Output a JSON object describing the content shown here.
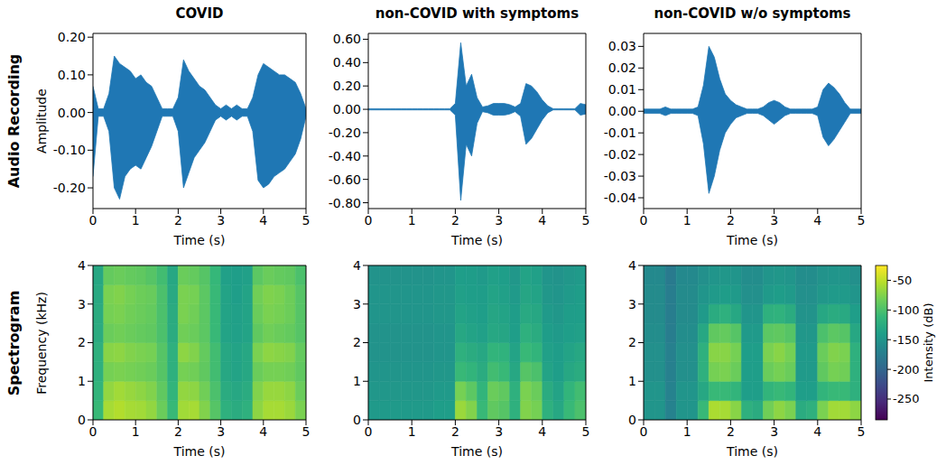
{
  "column_titles": [
    "COVID",
    "non-COVID with symptoms",
    "non-COVID w/o symptoms"
  ],
  "row_labels": [
    "Audio Recording",
    "Spectrogram"
  ],
  "colorbar": {
    "label": "Intensity (dB)",
    "range": [
      -285,
      -25
    ],
    "ticks": [
      -50,
      -100,
      -150,
      -200,
      -250
    ]
  },
  "chart_data": [
    {
      "type": "area",
      "color": "#1f77b4",
      "xlabel": "Time (s)",
      "ylabel": "Amplitude",
      "xlim": [
        0,
        5
      ],
      "xticks": [
        0,
        1,
        2,
        3,
        4,
        5
      ],
      "ylim": [
        -0.255,
        0.21
      ],
      "yticks": [
        {
          "value": -0.2,
          "label": "-0.20"
        },
        {
          "value": -0.1,
          "label": "-0.10"
        },
        {
          "value": 0,
          "label": "0.00"
        },
        {
          "value": 0.1,
          "label": "0.10"
        },
        {
          "value": 0.2,
          "label": "0.20"
        }
      ],
      "x": [
        0,
        0.125,
        0.25,
        0.375,
        0.5,
        0.625,
        0.75,
        0.875,
        1,
        1.125,
        1.25,
        1.375,
        1.5,
        1.625,
        1.75,
        1.875,
        2,
        2.125,
        2.25,
        2.375,
        2.5,
        2.625,
        2.75,
        2.875,
        3,
        3.125,
        3.25,
        3.375,
        3.5,
        3.625,
        3.75,
        3.875,
        4,
        4.125,
        4.25,
        4.375,
        4.5,
        4.625,
        4.75,
        4.875,
        5
      ],
      "upper": [
        0.07,
        0.01,
        0.01,
        0.05,
        0.15,
        0.13,
        0.12,
        0.11,
        0.09,
        0.1,
        0.08,
        0.07,
        0.04,
        0.01,
        0.01,
        0.01,
        0.04,
        0.14,
        0.11,
        0.09,
        0.07,
        0.06,
        0.04,
        0.02,
        0.01,
        0.02,
        0.01,
        0.02,
        0.01,
        0.01,
        0.04,
        0.1,
        0.13,
        0.12,
        0.11,
        0.1,
        0.1,
        0.09,
        0.08,
        0.05,
        0.01
      ],
      "lower": [
        -0.17,
        -0.01,
        -0.01,
        -0.05,
        -0.2,
        -0.23,
        -0.17,
        -0.15,
        -0.14,
        -0.15,
        -0.12,
        -0.09,
        -0.05,
        -0.01,
        -0.01,
        -0.01,
        -0.05,
        -0.2,
        -0.16,
        -0.12,
        -0.1,
        -0.08,
        -0.05,
        -0.02,
        -0.01,
        -0.02,
        -0.01,
        -0.02,
        -0.01,
        -0.01,
        -0.05,
        -0.18,
        -0.2,
        -0.19,
        -0.17,
        -0.16,
        -0.15,
        -0.13,
        -0.11,
        -0.07,
        -0.01
      ]
    },
    {
      "type": "area",
      "color": "#1f77b4",
      "xlabel": "Time (s)",
      "xlim": [
        0,
        5
      ],
      "xticks": [
        0,
        1,
        2,
        3,
        4,
        5
      ],
      "ylim": [
        -0.85,
        0.65
      ],
      "yticks": [
        {
          "value": -0.8,
          "label": "-0.80"
        },
        {
          "value": -0.6,
          "label": "-0.60"
        },
        {
          "value": -0.4,
          "label": "-0.40"
        },
        {
          "value": -0.2,
          "label": "-0.20"
        },
        {
          "value": 0,
          "label": "0.00"
        },
        {
          "value": 0.2,
          "label": "0.20"
        },
        {
          "value": 0.4,
          "label": "0.40"
        },
        {
          "value": 0.6,
          "label": "0.60"
        }
      ],
      "x": [
        0,
        0.125,
        0.25,
        0.375,
        0.5,
        0.625,
        0.75,
        0.875,
        1,
        1.125,
        1.25,
        1.375,
        1.5,
        1.625,
        1.75,
        1.875,
        2,
        2.125,
        2.25,
        2.375,
        2.5,
        2.625,
        2.75,
        2.875,
        3,
        3.125,
        3.25,
        3.375,
        3.5,
        3.625,
        3.75,
        3.875,
        4,
        4.125,
        4.25,
        4.375,
        4.5,
        4.625,
        4.75,
        4.875,
        5
      ],
      "upper": [
        0.005,
        0.005,
        0.005,
        0.005,
        0.005,
        0.005,
        0.005,
        0.005,
        0.005,
        0.005,
        0.005,
        0.005,
        0.005,
        0.005,
        0.005,
        0.005,
        0.05,
        0.57,
        0.2,
        0.3,
        0.1,
        0.02,
        0.03,
        0.05,
        0.05,
        0.05,
        0.04,
        0.02,
        0.05,
        0.22,
        0.2,
        0.15,
        0.08,
        0.03,
        0.005,
        0.005,
        0.005,
        0.005,
        0.005,
        0.05,
        0.04
      ],
      "lower": [
        -0.005,
        -0.005,
        -0.005,
        -0.005,
        -0.005,
        -0.005,
        -0.005,
        -0.005,
        -0.005,
        -0.005,
        -0.005,
        -0.005,
        -0.005,
        -0.005,
        -0.005,
        -0.005,
        -0.05,
        -0.78,
        -0.3,
        -0.4,
        -0.12,
        -0.02,
        -0.03,
        -0.05,
        -0.05,
        -0.05,
        -0.04,
        -0.02,
        -0.06,
        -0.3,
        -0.25,
        -0.17,
        -0.09,
        -0.03,
        -0.005,
        -0.005,
        -0.005,
        -0.005,
        -0.005,
        -0.05,
        -0.04
      ]
    },
    {
      "type": "area",
      "color": "#1f77b4",
      "xlabel": "Time (s)",
      "xlim": [
        0,
        5
      ],
      "xticks": [
        0,
        1,
        2,
        3,
        4,
        5
      ],
      "ylim": [
        -0.045,
        0.036
      ],
      "yticks": [
        {
          "value": -0.04,
          "label": "-0.04"
        },
        {
          "value": -0.03,
          "label": "-0.03"
        },
        {
          "value": -0.02,
          "label": "-0.02"
        },
        {
          "value": -0.01,
          "label": "-0.01"
        },
        {
          "value": 0,
          "label": "0.00"
        },
        0.01,
        0.02,
        0.03
      ],
      "x": [
        0,
        0.125,
        0.25,
        0.375,
        0.5,
        0.625,
        0.75,
        0.875,
        1,
        1.125,
        1.25,
        1.375,
        1.5,
        1.625,
        1.75,
        1.875,
        2,
        2.125,
        2.25,
        2.375,
        2.5,
        2.625,
        2.75,
        2.875,
        3,
        3.125,
        3.25,
        3.375,
        3.5,
        3.625,
        3.75,
        3.875,
        4,
        4.125,
        4.25,
        4.375,
        4.5,
        4.625,
        4.75,
        4.875,
        5
      ],
      "upper": [
        0.001,
        0.001,
        0.001,
        0.001,
        0.002,
        0.001,
        0.001,
        0.001,
        0.001,
        0.001,
        0.002,
        0.012,
        0.03,
        0.025,
        0.015,
        0.008,
        0.005,
        0.003,
        0.002,
        0.001,
        0.001,
        0.001,
        0.002,
        0.004,
        0.005,
        0.004,
        0.002,
        0.001,
        0.001,
        0.001,
        0.001,
        0.001,
        0.002,
        0.01,
        0.013,
        0.011,
        0.008,
        0.004,
        0.001,
        0.001,
        0.001
      ],
      "lower": [
        -0.001,
        -0.001,
        -0.001,
        -0.001,
        -0.002,
        -0.001,
        -0.001,
        -0.001,
        -0.001,
        -0.001,
        -0.002,
        -0.015,
        -0.038,
        -0.03,
        -0.018,
        -0.01,
        -0.006,
        -0.003,
        -0.002,
        -0.001,
        -0.001,
        -0.001,
        -0.002,
        -0.004,
        -0.006,
        -0.004,
        -0.002,
        -0.001,
        -0.001,
        -0.001,
        -0.001,
        -0.001,
        -0.002,
        -0.012,
        -0.016,
        -0.013,
        -0.009,
        -0.005,
        -0.001,
        -0.001,
        -0.001
      ]
    },
    {
      "type": "heatmap",
      "xlabel": "Time (s)",
      "ylabel": "Frequency (kHz)",
      "xlim": [
        0,
        5
      ],
      "xticks": [
        0,
        1,
        2,
        3,
        4,
        5
      ],
      "ylim": [
        0,
        4
      ],
      "yticks": [
        0,
        1,
        2,
        3,
        4
      ],
      "time_bins": [
        0,
        0.25,
        0.5,
        0.75,
        1,
        1.25,
        1.5,
        1.75,
        2,
        2.25,
        2.5,
        2.75,
        3,
        3.25,
        3.5,
        3.75,
        4,
        4.25,
        4.5,
        4.75,
        5
      ],
      "freq_bins": [
        0,
        0.5,
        1,
        1.5,
        2,
        2.5,
        3,
        3.5,
        4
      ],
      "cells": [
        [
          -110,
          -60,
          -55,
          -60,
          -62,
          -68,
          -85,
          -110,
          -62,
          -60,
          -75,
          -95,
          -120,
          -125,
          -120,
          -70,
          -60,
          -60,
          -65,
          -78
        ],
        [
          -115,
          -68,
          -62,
          -66,
          -70,
          -75,
          -90,
          -115,
          -68,
          -70,
          -82,
          -100,
          -125,
          -130,
          -125,
          -75,
          -66,
          -66,
          -70,
          -85
        ],
        [
          -120,
          -80,
          -78,
          -80,
          -82,
          -85,
          -95,
          -120,
          -80,
          -82,
          -90,
          -105,
          -130,
          -135,
          -130,
          -85,
          -80,
          -80,
          -82,
          -90
        ],
        [
          -120,
          -72,
          -70,
          -75,
          -78,
          -80,
          -95,
          -120,
          -70,
          -75,
          -88,
          -105,
          -130,
          -135,
          -130,
          -78,
          -70,
          -72,
          -75,
          -88
        ],
        [
          -125,
          -85,
          -82,
          -85,
          -88,
          -90,
          -100,
          -125,
          -82,
          -85,
          -92,
          -110,
          -135,
          -138,
          -135,
          -90,
          -82,
          -85,
          -88,
          -95
        ],
        [
          -125,
          -80,
          -78,
          -82,
          -85,
          -88,
          -100,
          -125,
          -78,
          -82,
          -92,
          -110,
          -135,
          -138,
          -135,
          -85,
          -78,
          -80,
          -84,
          -95
        ],
        [
          -128,
          -78,
          -75,
          -80,
          -84,
          -86,
          -100,
          -128,
          -78,
          -80,
          -92,
          -110,
          -135,
          -140,
          -135,
          -82,
          -76,
          -78,
          -84,
          -95
        ],
        [
          -130,
          -88,
          -85,
          -88,
          -90,
          -95,
          -105,
          -130,
          -85,
          -88,
          -95,
          -112,
          -138,
          -140,
          -138,
          -92,
          -85,
          -88,
          -90,
          -100
        ]
      ]
    },
    {
      "type": "heatmap",
      "xlabel": "Time (s)",
      "xlim": [
        0,
        5
      ],
      "xticks": [
        0,
        1,
        2,
        3,
        4,
        5
      ],
      "ylim": [
        0,
        4
      ],
      "yticks": [
        0,
        1,
        2,
        3,
        4
      ],
      "time_bins": [
        0,
        0.25,
        0.5,
        0.75,
        1,
        1.25,
        1.5,
        1.75,
        2,
        2.25,
        2.5,
        2.75,
        3,
        3.25,
        3.5,
        3.75,
        4,
        4.25,
        4.5,
        4.75,
        5
      ],
      "freq_bins": [
        0,
        0.5,
        1,
        1.5,
        2,
        2.5,
        3,
        3.5,
        4
      ],
      "cells": [
        [
          -145,
          -145,
          -145,
          -145,
          -145,
          -145,
          -140,
          -140,
          -65,
          -75,
          -110,
          -90,
          -95,
          -120,
          -75,
          -80,
          -120,
          -130,
          -110,
          -100
        ],
        [
          -148,
          -148,
          -148,
          -148,
          -148,
          -148,
          -145,
          -145,
          -80,
          -92,
          -115,
          -85,
          -90,
          -120,
          -78,
          -85,
          -125,
          -135,
          -115,
          -105
        ],
        [
          -150,
          -150,
          -150,
          -150,
          -150,
          -150,
          -148,
          -148,
          -110,
          -115,
          -125,
          -105,
          -110,
          -130,
          -95,
          -100,
          -135,
          -140,
          -130,
          -125
        ],
        [
          -152,
          -152,
          -152,
          -152,
          -152,
          -152,
          -150,
          -150,
          -120,
          -125,
          -130,
          -115,
          -118,
          -135,
          -110,
          -115,
          -138,
          -142,
          -135,
          -130
        ],
        [
          -152,
          -152,
          -152,
          -152,
          -152,
          -152,
          -150,
          -150,
          -130,
          -135,
          -138,
          -130,
          -132,
          -140,
          -120,
          -125,
          -142,
          -145,
          -140,
          -138
        ],
        [
          -150,
          -150,
          -150,
          -150,
          -150,
          -150,
          -148,
          -148,
          -135,
          -138,
          -140,
          -132,
          -135,
          -142,
          -128,
          -130,
          -145,
          -148,
          -142,
          -140
        ],
        [
          -150,
          -150,
          -150,
          -150,
          -150,
          -150,
          -148,
          -148,
          -138,
          -140,
          -142,
          -135,
          -138,
          -145,
          -132,
          -135,
          -148,
          -150,
          -145,
          -142
        ],
        [
          -152,
          -152,
          -152,
          -152,
          -152,
          -152,
          -150,
          -150,
          -140,
          -142,
          -145,
          -138,
          -140,
          -148,
          -135,
          -138,
          -150,
          -152,
          -148,
          -145
        ]
      ]
    },
    {
      "type": "heatmap",
      "xlabel": "Time (s)",
      "xlim": [
        0,
        5
      ],
      "xticks": [
        0,
        1,
        2,
        3,
        4,
        5
      ],
      "ylim": [
        0,
        4
      ],
      "yticks": [
        0,
        1,
        2,
        3,
        4
      ],
      "time_bins": [
        0,
        0.25,
        0.5,
        0.75,
        1,
        1.25,
        1.5,
        1.75,
        2,
        2.25,
        2.5,
        2.75,
        3,
        3.25,
        3.5,
        3.75,
        4,
        4.25,
        4.5,
        4.75,
        5
      ],
      "freq_bins": [
        0,
        0.5,
        1,
        1.5,
        2,
        2.5,
        3,
        3.5,
        4
      ],
      "cells": [
        [
          -150,
          -150,
          -170,
          -150,
          -150,
          -110,
          -58,
          -60,
          -72,
          -120,
          -125,
          -82,
          -70,
          -78,
          -125,
          -120,
          -78,
          -62,
          -62,
          -70
        ],
        [
          -150,
          -150,
          -170,
          -150,
          -150,
          -130,
          -110,
          -110,
          -115,
          -140,
          -140,
          -115,
          -110,
          -115,
          -140,
          -140,
          -115,
          -110,
          -110,
          -120
        ],
        [
          -155,
          -155,
          -172,
          -155,
          -155,
          -120,
          -80,
          -78,
          -85,
          -140,
          -140,
          -85,
          -80,
          -85,
          -145,
          -145,
          -90,
          -80,
          -82,
          -120
        ],
        [
          -155,
          -155,
          -172,
          -155,
          -155,
          -120,
          -72,
          -72,
          -80,
          -140,
          -140,
          -78,
          -72,
          -80,
          -145,
          -145,
          -85,
          -75,
          -78,
          -120
        ],
        [
          -158,
          -158,
          -175,
          -158,
          -158,
          -130,
          -90,
          -88,
          -95,
          -145,
          -145,
          -92,
          -90,
          -95,
          -148,
          -148,
          -100,
          -92,
          -95,
          -130
        ],
        [
          -160,
          -160,
          -175,
          -160,
          -160,
          -145,
          -125,
          -120,
          -130,
          -150,
          -150,
          -120,
          -118,
          -125,
          -152,
          -152,
          -130,
          -125,
          -128,
          -140
        ],
        [
          -160,
          -160,
          -175,
          -160,
          -160,
          -150,
          -145,
          -142,
          -145,
          -155,
          -155,
          -145,
          -142,
          -145,
          -155,
          -155,
          -148,
          -145,
          -145,
          -150
        ],
        [
          -162,
          -162,
          -178,
          -162,
          -162,
          -155,
          -150,
          -148,
          -150,
          -158,
          -158,
          -150,
          -148,
          -150,
          -158,
          -158,
          -152,
          -150,
          -150,
          -155
        ]
      ]
    }
  ]
}
